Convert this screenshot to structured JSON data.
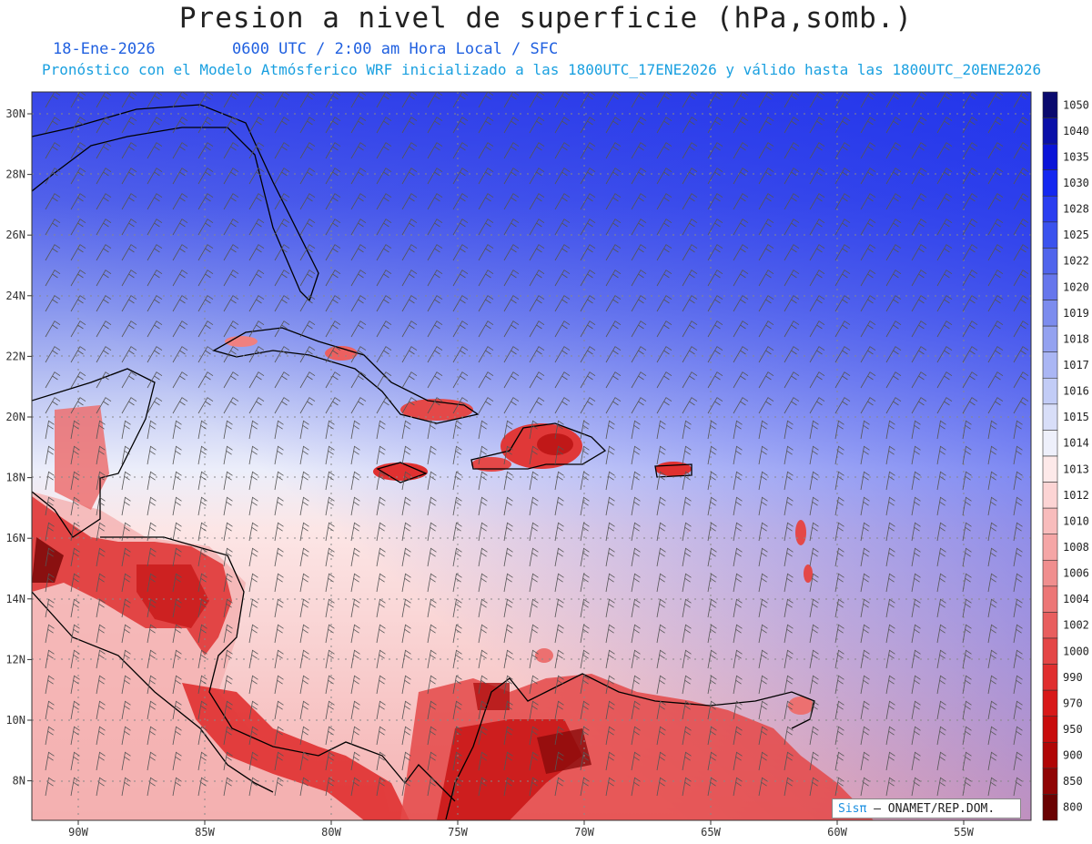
{
  "header": {
    "title": "Presion a nivel de superficie (hPa,somb.)",
    "date": "18-Ene-2026",
    "time_line": "0600 UTC / 2:00 am Hora Local / SFC",
    "forecast_line": "Pronóstico con el Modelo Atmósferico WRF inicializado a las 1800UTC_17ENE2026 y válido hasta las  1800UTC_20ENE2026"
  },
  "map": {
    "lon_labels": [
      "90W",
      "85W",
      "80W",
      "75W",
      "70W",
      "65W",
      "60W",
      "55W"
    ],
    "lat_labels": [
      "30N",
      "28N",
      "26N",
      "24N",
      "22N",
      "20N",
      "18N",
      "16N",
      "14N",
      "12N",
      "10N",
      "8N"
    ],
    "legend_levels": [
      "1050",
      "1040",
      "1035",
      "1030",
      "1028",
      "1025",
      "1022",
      "1020",
      "1019",
      "1018",
      "1017",
      "1016",
      "1015",
      "1014",
      "1013",
      "1012",
      "1010",
      "1008",
      "1006",
      "1004",
      "1002",
      "1000",
      "990",
      "970",
      "950",
      "900",
      "850",
      "800"
    ],
    "legend_colors": [
      "#0a0a6e",
      "#0a10a8",
      "#0a14d8",
      "#1428f0",
      "#2a3ef0",
      "#3a52ee",
      "#5064ec",
      "#6676ec",
      "#7c8cee",
      "#94a2f0",
      "#aab6f4",
      "#c2ccf6",
      "#d8def8",
      "#eef0fb",
      "#fde9e9",
      "#fcd4d4",
      "#f8bcbc",
      "#f5a6a6",
      "#f08e8e",
      "#ec7676",
      "#e85e5e",
      "#e44646",
      "#e02e2e",
      "#d81818",
      "#c80c0c",
      "#b00606",
      "#900404",
      "#6a0202"
    ]
  },
  "credit": {
    "logo": "Sisπ",
    "text": "– ONAMET/REP.DOM."
  }
}
